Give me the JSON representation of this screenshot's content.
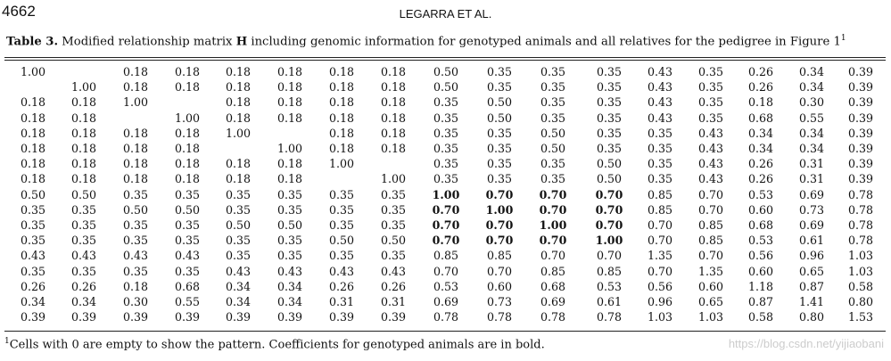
{
  "header": {
    "page_number": "4662",
    "running_head": "LEGARRA ET AL."
  },
  "caption": {
    "label": "Table 3.",
    "text_before": "Modified relationship matrix ",
    "bold_symbol": "H",
    "text_after": " including genomic information for genotyped animals and all relatives for the pedigree in Figure 1",
    "footnote_mark": "1"
  },
  "table": {
    "rows": [
      [
        "1.00",
        null,
        "0.18",
        "0.18",
        "0.18",
        "0.18",
        "0.18",
        "0.18",
        "0.50",
        "0.35",
        "0.35",
        "0.35",
        "0.43",
        "0.35",
        "0.26",
        "0.34",
        "0.39"
      ],
      [
        null,
        "1.00",
        "0.18",
        "0.18",
        "0.18",
        "0.18",
        "0.18",
        "0.18",
        "0.50",
        "0.35",
        "0.35",
        "0.35",
        "0.43",
        "0.35",
        "0.26",
        "0.34",
        "0.39"
      ],
      [
        "0.18",
        "0.18",
        "1.00",
        null,
        "0.18",
        "0.18",
        "0.18",
        "0.18",
        "0.35",
        "0.50",
        "0.35",
        "0.35",
        "0.43",
        "0.35",
        "0.18",
        "0.30",
        "0.39"
      ],
      [
        "0.18",
        "0.18",
        null,
        "1.00",
        "0.18",
        "0.18",
        "0.18",
        "0.18",
        "0.35",
        "0.50",
        "0.35",
        "0.35",
        "0.43",
        "0.35",
        "0.68",
        "0.55",
        "0.39"
      ],
      [
        "0.18",
        "0.18",
        "0.18",
        "0.18",
        "1.00",
        null,
        "0.18",
        "0.18",
        "0.35",
        "0.35",
        "0.50",
        "0.35",
        "0.35",
        "0.43",
        "0.34",
        "0.34",
        "0.39"
      ],
      [
        "0.18",
        "0.18",
        "0.18",
        "0.18",
        null,
        "1.00",
        "0.18",
        "0.18",
        "0.35",
        "0.35",
        "0.50",
        "0.35",
        "0.35",
        "0.43",
        "0.34",
        "0.34",
        "0.39"
      ],
      [
        "0.18",
        "0.18",
        "0.18",
        "0.18",
        "0.18",
        "0.18",
        "1.00",
        null,
        "0.35",
        "0.35",
        "0.35",
        "0.50",
        "0.35",
        "0.43",
        "0.26",
        "0.31",
        "0.39"
      ],
      [
        "0.18",
        "0.18",
        "0.18",
        "0.18",
        "0.18",
        "0.18",
        null,
        "1.00",
        "0.35",
        "0.35",
        "0.35",
        "0.50",
        "0.35",
        "0.43",
        "0.26",
        "0.31",
        "0.39"
      ],
      [
        "0.50",
        "0.50",
        "0.35",
        "0.35",
        "0.35",
        "0.35",
        "0.35",
        "0.35",
        "1.00",
        "0.70",
        "0.70",
        "0.70",
        "0.85",
        "0.70",
        "0.53",
        "0.69",
        "0.78"
      ],
      [
        "0.35",
        "0.35",
        "0.50",
        "0.50",
        "0.35",
        "0.35",
        "0.35",
        "0.35",
        "0.70",
        "1.00",
        "0.70",
        "0.70",
        "0.85",
        "0.70",
        "0.60",
        "0.73",
        "0.78"
      ],
      [
        "0.35",
        "0.35",
        "0.35",
        "0.35",
        "0.50",
        "0.50",
        "0.35",
        "0.35",
        "0.70",
        "0.70",
        "1.00",
        "0.70",
        "0.70",
        "0.85",
        "0.68",
        "0.69",
        "0.78"
      ],
      [
        "0.35",
        "0.35",
        "0.35",
        "0.35",
        "0.35",
        "0.35",
        "0.50",
        "0.50",
        "0.70",
        "0.70",
        "0.70",
        "1.00",
        "0.70",
        "0.85",
        "0.53",
        "0.61",
        "0.78"
      ],
      [
        "0.43",
        "0.43",
        "0.43",
        "0.43",
        "0.35",
        "0.35",
        "0.35",
        "0.35",
        "0.85",
        "0.85",
        "0.70",
        "0.70",
        "1.35",
        "0.70",
        "0.56",
        "0.96",
        "1.03"
      ],
      [
        "0.35",
        "0.35",
        "0.35",
        "0.35",
        "0.43",
        "0.43",
        "0.43",
        "0.43",
        "0.70",
        "0.70",
        "0.85",
        "0.85",
        "0.70",
        "1.35",
        "0.60",
        "0.65",
        "1.03"
      ],
      [
        "0.26",
        "0.26",
        "0.18",
        "0.68",
        "0.34",
        "0.34",
        "0.26",
        "0.26",
        "0.53",
        "0.60",
        "0.68",
        "0.53",
        "0.56",
        "0.60",
        "1.18",
        "0.87",
        "0.58"
      ],
      [
        "0.34",
        "0.34",
        "0.30",
        "0.55",
        "0.34",
        "0.34",
        "0.31",
        "0.31",
        "0.69",
        "0.73",
        "0.69",
        "0.61",
        "0.96",
        "0.65",
        "0.87",
        "1.41",
        "0.80"
      ],
      [
        "0.39",
        "0.39",
        "0.39",
        "0.39",
        "0.39",
        "0.39",
        "0.39",
        "0.39",
        "0.78",
        "0.78",
        "0.78",
        "0.78",
        "1.03",
        "1.03",
        "0.58",
        "0.80",
        "1.53"
      ]
    ]
  },
  "footnote": {
    "mark": "1",
    "text": "Cells with 0 are empty to show the pattern. Coefficients for genotyped animals are in bold."
  },
  "watermark": "https://blog.csdn.net/yijiaobani"
}
